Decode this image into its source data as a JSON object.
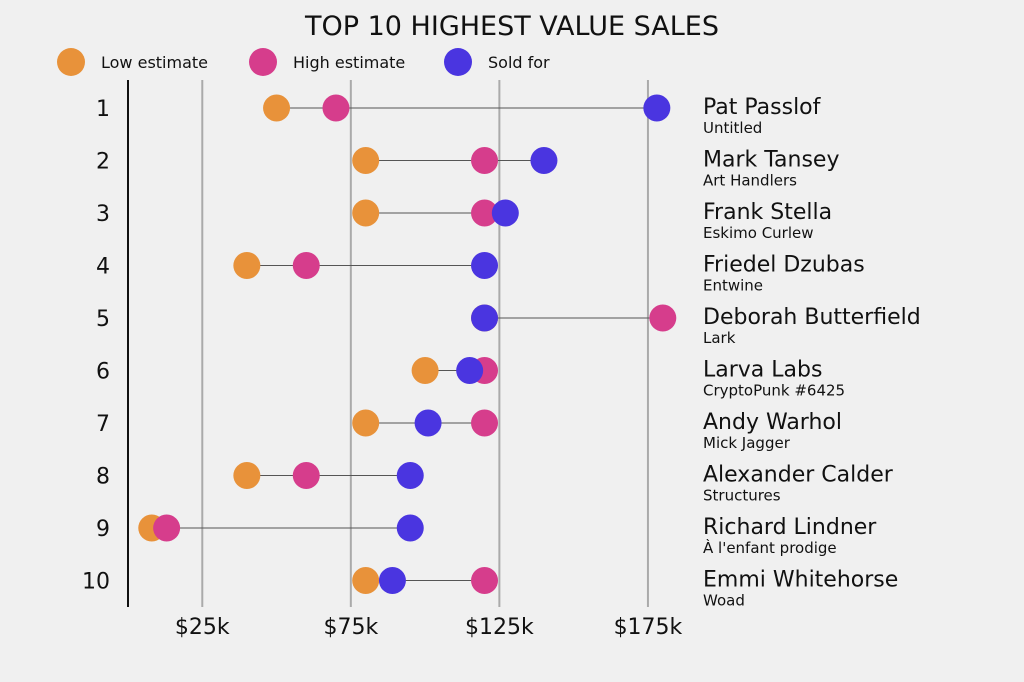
{
  "chart_data": {
    "type": "dumbbell",
    "title": "TOP 10 HIGHEST VALUE SALES",
    "legend": [
      {
        "label": "Low estimate",
        "key": "low",
        "color": "#e8923a"
      },
      {
        "label": "High estimate",
        "key": "high",
        "color": "#d63d8c"
      },
      {
        "label": "Sold for",
        "key": "sold",
        "color": "#4a35e0"
      }
    ],
    "xlim": [
      0,
      190000
    ],
    "x_ticks": [
      {
        "value": 25000,
        "label": "$25k"
      },
      {
        "value": 75000,
        "label": "$75k"
      },
      {
        "value": 125000,
        "label": "$125k"
      },
      {
        "value": 175000,
        "label": "$175k"
      }
    ],
    "rows": [
      {
        "rank": "1",
        "artist": "Pat Passlof",
        "work": "Untitled",
        "low": 50000,
        "high": 70000,
        "sold": 178000
      },
      {
        "rank": "2",
        "artist": "Mark Tansey",
        "work": "Art Handlers",
        "low": 80000,
        "high": 120000,
        "sold": 140000
      },
      {
        "rank": "3",
        "artist": "Frank Stella",
        "work": "Eskimo Curlew",
        "low": 80000,
        "high": 120000,
        "sold": 127000
      },
      {
        "rank": "4",
        "artist": "Friedel Dzubas",
        "work": "Entwine",
        "low": 40000,
        "high": 60000,
        "sold": 120000
      },
      {
        "rank": "5",
        "artist": "Deborah Butterfield",
        "work": "Lark",
        "low": 120000,
        "high": 180000,
        "sold": 120000
      },
      {
        "rank": "6",
        "artist": "Larva Labs",
        "work": "CryptoPunk #6425",
        "low": 100000,
        "high": 120000,
        "sold": 115000
      },
      {
        "rank": "7",
        "artist": "Andy Warhol",
        "work": "Mick Jagger",
        "low": 80000,
        "high": 120000,
        "sold": 101000
      },
      {
        "rank": "8",
        "artist": "Alexander Calder",
        "work": "Structures",
        "low": 40000,
        "high": 60000,
        "sold": 95000
      },
      {
        "rank": "9",
        "artist": "Richard Lindner",
        "work": "À l'enfant prodige",
        "low": 8000,
        "high": 13000,
        "sold": 95000
      },
      {
        "rank": "10",
        "artist": "Emmi Whitehorse",
        "work": "Woad",
        "low": 80000,
        "high": 120000,
        "sold": 89000
      }
    ]
  }
}
